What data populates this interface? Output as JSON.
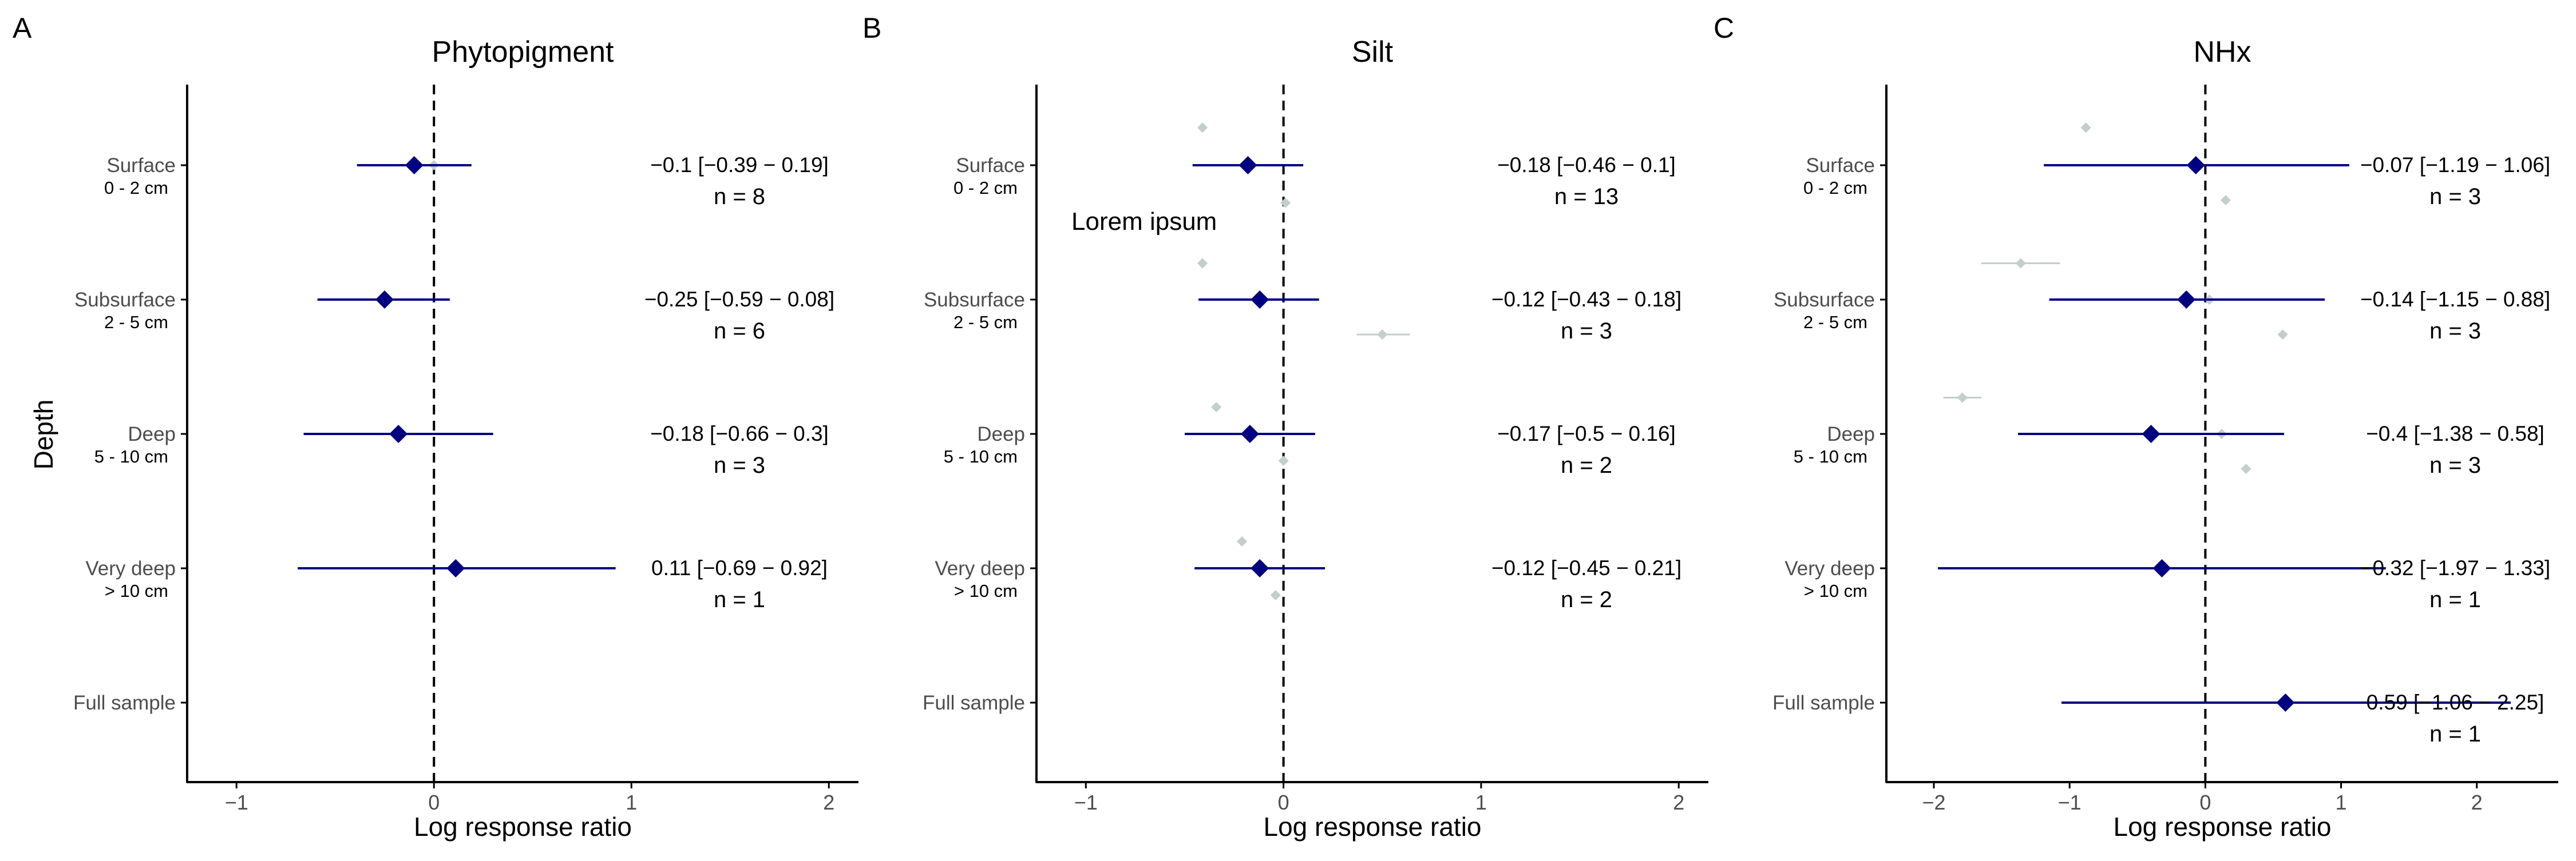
{
  "colors": {
    "main": "#000080",
    "background_points": "#c2cfcb",
    "axis": "#000000",
    "tick_text": "#4d4d4d"
  },
  "y_axis_title": "Depth",
  "x_axis_title": "Log response ratio",
  "categories": [
    {
      "label": "Surface",
      "sublabel": "0 - 2 cm"
    },
    {
      "label": "Subsurface",
      "sublabel": "2 - 5 cm"
    },
    {
      "label": "Deep",
      "sublabel": "5 - 10 cm"
    },
    {
      "label": "Very deep",
      "sublabel": "> 10 cm"
    },
    {
      "label": "Full sample",
      "sublabel": ""
    }
  ],
  "chart_data": [
    {
      "type": "scatter",
      "letter": "A",
      "title": "Phytopigment",
      "xlabel": "Log response ratio",
      "ylabel": "Depth",
      "xlim": [
        -1.25,
        2.15
      ],
      "xticks": [
        -1,
        0,
        1,
        2
      ],
      "reference_line_x": 0,
      "series": [
        {
          "points": [
            {
              "category": "Surface",
              "estimate": -0.1,
              "ci_low": -0.39,
              "ci_high": 0.19,
              "annotation": "−0.1 [−0.39 − 0.19]",
              "n_label": "n = 8"
            },
            {
              "category": "Subsurface",
              "estimate": -0.25,
              "ci_low": -0.59,
              "ci_high": 0.08,
              "annotation": "−0.25 [−0.59 − 0.08]",
              "n_label": "n = 6"
            },
            {
              "category": "Deep",
              "estimate": -0.18,
              "ci_low": -0.66,
              "ci_high": 0.3,
              "annotation": "−0.18 [−0.66 − 0.3]",
              "n_label": "n = 3"
            },
            {
              "category": "Very deep",
              "estimate": 0.11,
              "ci_low": -0.69,
              "ci_high": 0.92,
              "annotation": "0.11 [−0.69 − 0.92]",
              "n_label": "n = 1"
            }
          ]
        }
      ],
      "background_points": [
        {
          "category": "Surface",
          "x": 0.0,
          "offset": 0
        }
      ]
    },
    {
      "type": "scatter",
      "letter": "B",
      "title": "Silt",
      "xlabel": "Log response ratio",
      "xlim": [
        -1.25,
        2.15
      ],
      "xticks": [
        -1,
        0,
        1,
        2
      ],
      "reference_line_x": 0,
      "annotations_text": [
        "Lorem ipsum"
      ],
      "series": [
        {
          "points": [
            {
              "category": "Surface",
              "estimate": -0.18,
              "ci_low": -0.46,
              "ci_high": 0.1,
              "annotation": "−0.18 [−0.46 − 0.1]",
              "n_label": "n = 13"
            },
            {
              "category": "Subsurface",
              "estimate": -0.12,
              "ci_low": -0.43,
              "ci_high": 0.18,
              "annotation": "−0.12 [−0.43 − 0.18]",
              "n_label": "n = 3"
            },
            {
              "category": "Deep",
              "estimate": -0.17,
              "ci_low": -0.5,
              "ci_high": 0.16,
              "annotation": "−0.17 [−0.5 − 0.16]",
              "n_label": "n = 2"
            },
            {
              "category": "Very deep",
              "estimate": -0.12,
              "ci_low": -0.45,
              "ci_high": 0.21,
              "annotation": "−0.12 [−0.45 − 0.21]",
              "n_label": "n = 2"
            }
          ]
        }
      ],
      "background_points": [
        {
          "category": "Surface",
          "x": -0.41,
          "offset": -0.28
        },
        {
          "category": "Surface",
          "x": 0.01,
          "offset": 0.28
        },
        {
          "category": "Subsurface",
          "x": -0.41,
          "offset": -0.27
        },
        {
          "category": "Subsurface",
          "x": 0.5,
          "offset": 0.26,
          "ci_low": 0.37,
          "ci_high": 0.64
        },
        {
          "category": "Deep",
          "x": -0.34,
          "offset": -0.2
        },
        {
          "category": "Deep",
          "x": 0.0,
          "offset": 0.2
        },
        {
          "category": "Very deep",
          "x": -0.21,
          "offset": -0.2
        },
        {
          "category": "Very deep",
          "x": -0.04,
          "offset": 0.2
        }
      ]
    },
    {
      "type": "scatter",
      "letter": "C",
      "title": "NHx",
      "xlabel": "Log response ratio",
      "xlim": [
        -2.35,
        2.6
      ],
      "xticks": [
        -2,
        -1,
        0,
        1,
        2
      ],
      "reference_line_x": 0,
      "series": [
        {
          "points": [
            {
              "category": "Surface",
              "estimate": -0.07,
              "ci_low": -1.19,
              "ci_high": 1.06,
              "annotation": "−0.07 [−1.19 − 1.06]",
              "n_label": "n = 3"
            },
            {
              "category": "Subsurface",
              "estimate": -0.14,
              "ci_low": -1.15,
              "ci_high": 0.88,
              "annotation": "−0.14 [−1.15 − 0.88]",
              "n_label": "n = 3"
            },
            {
              "category": "Deep",
              "estimate": -0.4,
              "ci_low": -1.38,
              "ci_high": 0.58,
              "annotation": "−0.4 [−1.38 − 0.58]",
              "n_label": "n = 3"
            },
            {
              "category": "Very deep",
              "estimate": -0.32,
              "ci_low": -1.97,
              "ci_high": 1.33,
              "annotation": "−0.32 [−1.97 − 1.33]",
              "n_label": "n = 1"
            },
            {
              "category": "Full sample",
              "estimate": 0.59,
              "ci_low": -1.06,
              "ci_high": 2.25,
              "annotation": "0.59 [−1.06 − 2.25]",
              "n_label": "n = 1"
            }
          ]
        }
      ],
      "background_points": [
        {
          "category": "Surface",
          "x": -0.88,
          "offset": -0.28
        },
        {
          "category": "Surface",
          "x": 0.15,
          "offset": 0.26
        },
        {
          "category": "Subsurface",
          "x": -1.36,
          "offset": -0.27,
          "ci_low": -1.65,
          "ci_high": -1.07
        },
        {
          "category": "Subsurface",
          "x": 0.03,
          "offset": 0.0
        },
        {
          "category": "Subsurface",
          "x": 0.57,
          "offset": 0.26
        },
        {
          "category": "Deep",
          "x": -1.79,
          "offset": -0.27,
          "ci_low": -1.93,
          "ci_high": -1.65
        },
        {
          "category": "Deep",
          "x": 0.12,
          "offset": 0.0
        },
        {
          "category": "Deep",
          "x": 0.3,
          "offset": 0.26
        }
      ]
    }
  ]
}
